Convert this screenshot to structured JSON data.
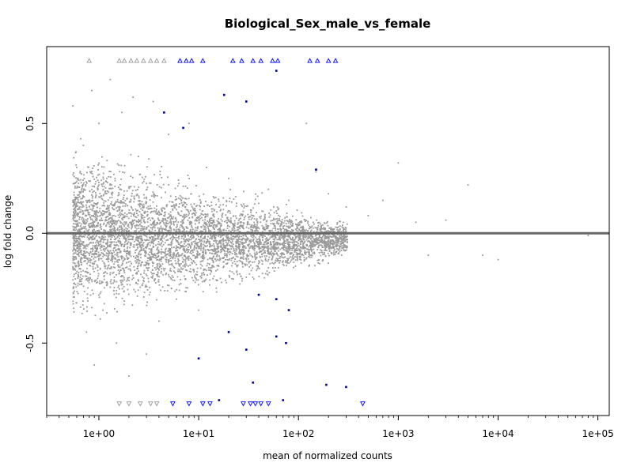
{
  "chart_data": {
    "type": "scatter",
    "title": "Biological_Sex_male_vs_female",
    "xlabel": "mean of normalized counts",
    "ylabel": "log fold change",
    "x_scale": "log10",
    "xlim": [
      0.3,
      130000
    ],
    "ylim": [
      -0.83,
      0.85
    ],
    "x_ticks": [
      1,
      10,
      100,
      1000,
      10000,
      100000
    ],
    "x_tick_labels": [
      "1e+00",
      "1e+01",
      "1e+02",
      "1e+03",
      "1e+04",
      "1e+05"
    ],
    "y_ticks": [
      -0.5,
      0.0,
      0.5
    ],
    "y_tick_labels": [
      "-0.5",
      "0.0",
      "0.5"
    ],
    "reference_line": {
      "y": 0,
      "color": "#666666"
    },
    "grid": false,
    "legend": "none",
    "colors": {
      "not_significant": "#999999",
      "significant": "#0000ff",
      "significant_point": "#00008b"
    },
    "series": [
      {
        "role": "not_significant",
        "marker": "dot",
        "points": [
          [
            0.55,
            0.58
          ],
          [
            0.6,
            0.3
          ],
          [
            0.65,
            -0.2
          ],
          [
            0.7,
            0.4
          ],
          [
            0.75,
            -0.45
          ],
          [
            0.8,
            0.12
          ],
          [
            0.85,
            0.65
          ],
          [
            0.9,
            -0.6
          ],
          [
            1.0,
            0.5
          ],
          [
            1.1,
            -0.35
          ],
          [
            1.2,
            0.25
          ],
          [
            1.3,
            0.7
          ],
          [
            1.5,
            -0.5
          ],
          [
            1.7,
            0.55
          ],
          [
            2.0,
            -0.65
          ],
          [
            2.2,
            0.62
          ],
          [
            2.5,
            0.35
          ],
          [
            3.0,
            -0.55
          ],
          [
            3.5,
            0.6
          ],
          [
            4.0,
            -0.4
          ],
          [
            5.0,
            0.45
          ],
          [
            6.0,
            -0.3
          ],
          [
            8.0,
            0.5
          ],
          [
            10.0,
            -0.35
          ],
          [
            12.0,
            0.3
          ],
          [
            15.0,
            -0.25
          ],
          [
            20.0,
            0.25
          ],
          [
            30.0,
            -0.2
          ],
          [
            50.0,
            0.2
          ],
          [
            80.0,
            0.15
          ],
          [
            120.0,
            0.5
          ],
          [
            150.0,
            0.28
          ],
          [
            200.0,
            0.18
          ],
          [
            300.0,
            0.12
          ],
          [
            500.0,
            0.08
          ],
          [
            700.0,
            0.15
          ],
          [
            1000.0,
            0.32
          ],
          [
            1500.0,
            0.05
          ],
          [
            2000.0,
            -0.1
          ],
          [
            3000.0,
            0.06
          ],
          [
            5000.0,
            0.22
          ],
          [
            7000.0,
            -0.1
          ],
          [
            10000.0,
            -0.12
          ],
          [
            80000.0,
            -0.01
          ]
        ]
      },
      {
        "role": "significant",
        "marker": "dot",
        "points": [
          [
            4.5,
            0.55
          ],
          [
            7.0,
            0.48
          ],
          [
            18.0,
            0.63
          ],
          [
            30.0,
            0.6
          ],
          [
            60.0,
            0.74
          ],
          [
            150.0,
            0.29
          ],
          [
            40.0,
            -0.28
          ],
          [
            60.0,
            -0.3
          ],
          [
            80.0,
            -0.35
          ],
          [
            20.0,
            -0.45
          ],
          [
            30.0,
            -0.53
          ],
          [
            35.0,
            -0.68
          ],
          [
            60.0,
            -0.47
          ],
          [
            75.0,
            -0.5
          ],
          [
            10.0,
            -0.57
          ],
          [
            16.0,
            -0.76
          ],
          [
            70.0,
            -0.76
          ],
          [
            190.0,
            -0.69
          ],
          [
            300.0,
            -0.7
          ]
        ]
      },
      {
        "role": "clipped_above",
        "marker": "triangle-up",
        "y_display": 0.785,
        "points": [
          [
            0.8,
            0.785
          ],
          [
            1.6,
            0.785
          ],
          [
            1.8,
            0.785
          ],
          [
            2.1,
            0.785
          ],
          [
            2.4,
            0.785
          ],
          [
            2.8,
            0.785
          ],
          [
            3.3,
            0.785
          ],
          [
            3.8,
            0.785
          ],
          [
            4.5,
            0.785
          ],
          [
            6.5,
            0.785
          ],
          [
            7.5,
            0.785
          ],
          [
            8.5,
            0.785
          ],
          [
            11.0,
            0.785
          ],
          [
            22.0,
            0.785
          ],
          [
            27.0,
            0.785
          ],
          [
            35.0,
            0.785
          ],
          [
            42.0,
            0.785
          ],
          [
            55.0,
            0.785
          ],
          [
            62.0,
            0.785
          ],
          [
            130.0,
            0.785
          ],
          [
            155.0,
            0.785
          ],
          [
            200.0,
            0.785
          ],
          [
            235.0,
            0.785
          ]
        ]
      },
      {
        "role": "clipped_below",
        "marker": "triangle-down",
        "y_display": -0.775,
        "points": [
          [
            1.6,
            -0.775
          ],
          [
            2.0,
            -0.775
          ],
          [
            2.6,
            -0.775
          ],
          [
            3.3,
            -0.775
          ],
          [
            3.8,
            -0.775
          ],
          [
            5.5,
            -0.775
          ],
          [
            8.0,
            -0.775
          ],
          [
            11.0,
            -0.775
          ],
          [
            13.0,
            -0.775
          ],
          [
            28.0,
            -0.775
          ],
          [
            33.0,
            -0.775
          ],
          [
            37.0,
            -0.775
          ],
          [
            42.0,
            -0.775
          ],
          [
            50.0,
            -0.775
          ],
          [
            440.0,
            -0.775
          ]
        ]
      }
    ]
  }
}
